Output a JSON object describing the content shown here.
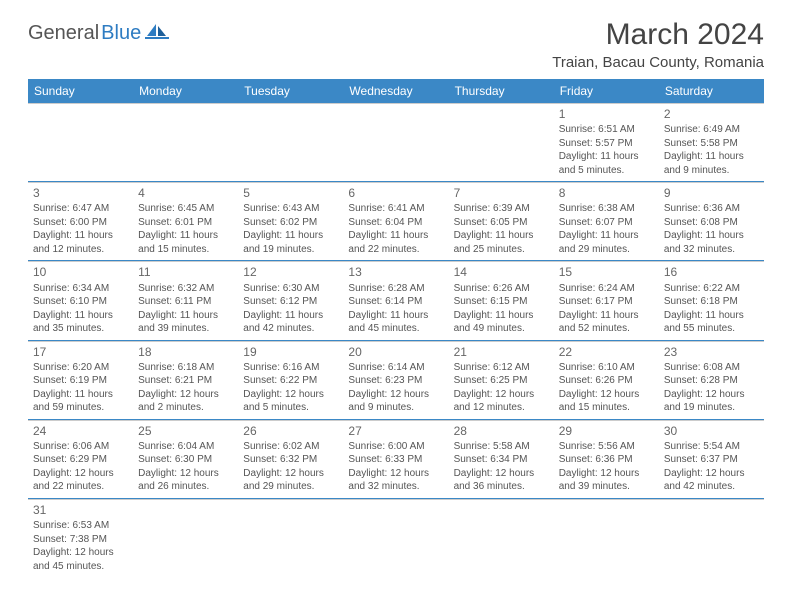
{
  "logo": {
    "general": "General",
    "blue": "Blue"
  },
  "title": "March 2024",
  "location": "Traian, Bacau County, Romania",
  "colors": {
    "header_bg": "#3b88c6",
    "header_fg": "#ffffff",
    "text": "#555555",
    "rule": "#3b88c6",
    "blue": "#2e7cc2"
  },
  "day_names": [
    "Sunday",
    "Monday",
    "Tuesday",
    "Wednesday",
    "Thursday",
    "Friday",
    "Saturday"
  ],
  "weeks": [
    [
      null,
      null,
      null,
      null,
      null,
      {
        "n": "1",
        "sr": "Sunrise: 6:51 AM",
        "ss": "Sunset: 5:57 PM",
        "d1": "Daylight: 11 hours",
        "d2": "and 5 minutes."
      },
      {
        "n": "2",
        "sr": "Sunrise: 6:49 AM",
        "ss": "Sunset: 5:58 PM",
        "d1": "Daylight: 11 hours",
        "d2": "and 9 minutes."
      }
    ],
    [
      {
        "n": "3",
        "sr": "Sunrise: 6:47 AM",
        "ss": "Sunset: 6:00 PM",
        "d1": "Daylight: 11 hours",
        "d2": "and 12 minutes."
      },
      {
        "n": "4",
        "sr": "Sunrise: 6:45 AM",
        "ss": "Sunset: 6:01 PM",
        "d1": "Daylight: 11 hours",
        "d2": "and 15 minutes."
      },
      {
        "n": "5",
        "sr": "Sunrise: 6:43 AM",
        "ss": "Sunset: 6:02 PM",
        "d1": "Daylight: 11 hours",
        "d2": "and 19 minutes."
      },
      {
        "n": "6",
        "sr": "Sunrise: 6:41 AM",
        "ss": "Sunset: 6:04 PM",
        "d1": "Daylight: 11 hours",
        "d2": "and 22 minutes."
      },
      {
        "n": "7",
        "sr": "Sunrise: 6:39 AM",
        "ss": "Sunset: 6:05 PM",
        "d1": "Daylight: 11 hours",
        "d2": "and 25 minutes."
      },
      {
        "n": "8",
        "sr": "Sunrise: 6:38 AM",
        "ss": "Sunset: 6:07 PM",
        "d1": "Daylight: 11 hours",
        "d2": "and 29 minutes."
      },
      {
        "n": "9",
        "sr": "Sunrise: 6:36 AM",
        "ss": "Sunset: 6:08 PM",
        "d1": "Daylight: 11 hours",
        "d2": "and 32 minutes."
      }
    ],
    [
      {
        "n": "10",
        "sr": "Sunrise: 6:34 AM",
        "ss": "Sunset: 6:10 PM",
        "d1": "Daylight: 11 hours",
        "d2": "and 35 minutes."
      },
      {
        "n": "11",
        "sr": "Sunrise: 6:32 AM",
        "ss": "Sunset: 6:11 PM",
        "d1": "Daylight: 11 hours",
        "d2": "and 39 minutes."
      },
      {
        "n": "12",
        "sr": "Sunrise: 6:30 AM",
        "ss": "Sunset: 6:12 PM",
        "d1": "Daylight: 11 hours",
        "d2": "and 42 minutes."
      },
      {
        "n": "13",
        "sr": "Sunrise: 6:28 AM",
        "ss": "Sunset: 6:14 PM",
        "d1": "Daylight: 11 hours",
        "d2": "and 45 minutes."
      },
      {
        "n": "14",
        "sr": "Sunrise: 6:26 AM",
        "ss": "Sunset: 6:15 PM",
        "d1": "Daylight: 11 hours",
        "d2": "and 49 minutes."
      },
      {
        "n": "15",
        "sr": "Sunrise: 6:24 AM",
        "ss": "Sunset: 6:17 PM",
        "d1": "Daylight: 11 hours",
        "d2": "and 52 minutes."
      },
      {
        "n": "16",
        "sr": "Sunrise: 6:22 AM",
        "ss": "Sunset: 6:18 PM",
        "d1": "Daylight: 11 hours",
        "d2": "and 55 minutes."
      }
    ],
    [
      {
        "n": "17",
        "sr": "Sunrise: 6:20 AM",
        "ss": "Sunset: 6:19 PM",
        "d1": "Daylight: 11 hours",
        "d2": "and 59 minutes."
      },
      {
        "n": "18",
        "sr": "Sunrise: 6:18 AM",
        "ss": "Sunset: 6:21 PM",
        "d1": "Daylight: 12 hours",
        "d2": "and 2 minutes."
      },
      {
        "n": "19",
        "sr": "Sunrise: 6:16 AM",
        "ss": "Sunset: 6:22 PM",
        "d1": "Daylight: 12 hours",
        "d2": "and 5 minutes."
      },
      {
        "n": "20",
        "sr": "Sunrise: 6:14 AM",
        "ss": "Sunset: 6:23 PM",
        "d1": "Daylight: 12 hours",
        "d2": "and 9 minutes."
      },
      {
        "n": "21",
        "sr": "Sunrise: 6:12 AM",
        "ss": "Sunset: 6:25 PM",
        "d1": "Daylight: 12 hours",
        "d2": "and 12 minutes."
      },
      {
        "n": "22",
        "sr": "Sunrise: 6:10 AM",
        "ss": "Sunset: 6:26 PM",
        "d1": "Daylight: 12 hours",
        "d2": "and 15 minutes."
      },
      {
        "n": "23",
        "sr": "Sunrise: 6:08 AM",
        "ss": "Sunset: 6:28 PM",
        "d1": "Daylight: 12 hours",
        "d2": "and 19 minutes."
      }
    ],
    [
      {
        "n": "24",
        "sr": "Sunrise: 6:06 AM",
        "ss": "Sunset: 6:29 PM",
        "d1": "Daylight: 12 hours",
        "d2": "and 22 minutes."
      },
      {
        "n": "25",
        "sr": "Sunrise: 6:04 AM",
        "ss": "Sunset: 6:30 PM",
        "d1": "Daylight: 12 hours",
        "d2": "and 26 minutes."
      },
      {
        "n": "26",
        "sr": "Sunrise: 6:02 AM",
        "ss": "Sunset: 6:32 PM",
        "d1": "Daylight: 12 hours",
        "d2": "and 29 minutes."
      },
      {
        "n": "27",
        "sr": "Sunrise: 6:00 AM",
        "ss": "Sunset: 6:33 PM",
        "d1": "Daylight: 12 hours",
        "d2": "and 32 minutes."
      },
      {
        "n": "28",
        "sr": "Sunrise: 5:58 AM",
        "ss": "Sunset: 6:34 PM",
        "d1": "Daylight: 12 hours",
        "d2": "and 36 minutes."
      },
      {
        "n": "29",
        "sr": "Sunrise: 5:56 AM",
        "ss": "Sunset: 6:36 PM",
        "d1": "Daylight: 12 hours",
        "d2": "and 39 minutes."
      },
      {
        "n": "30",
        "sr": "Sunrise: 5:54 AM",
        "ss": "Sunset: 6:37 PM",
        "d1": "Daylight: 12 hours",
        "d2": "and 42 minutes."
      }
    ],
    [
      {
        "n": "31",
        "sr": "Sunrise: 6:53 AM",
        "ss": "Sunset: 7:38 PM",
        "d1": "Daylight: 12 hours",
        "d2": "and 45 minutes."
      },
      null,
      null,
      null,
      null,
      null,
      null
    ]
  ]
}
